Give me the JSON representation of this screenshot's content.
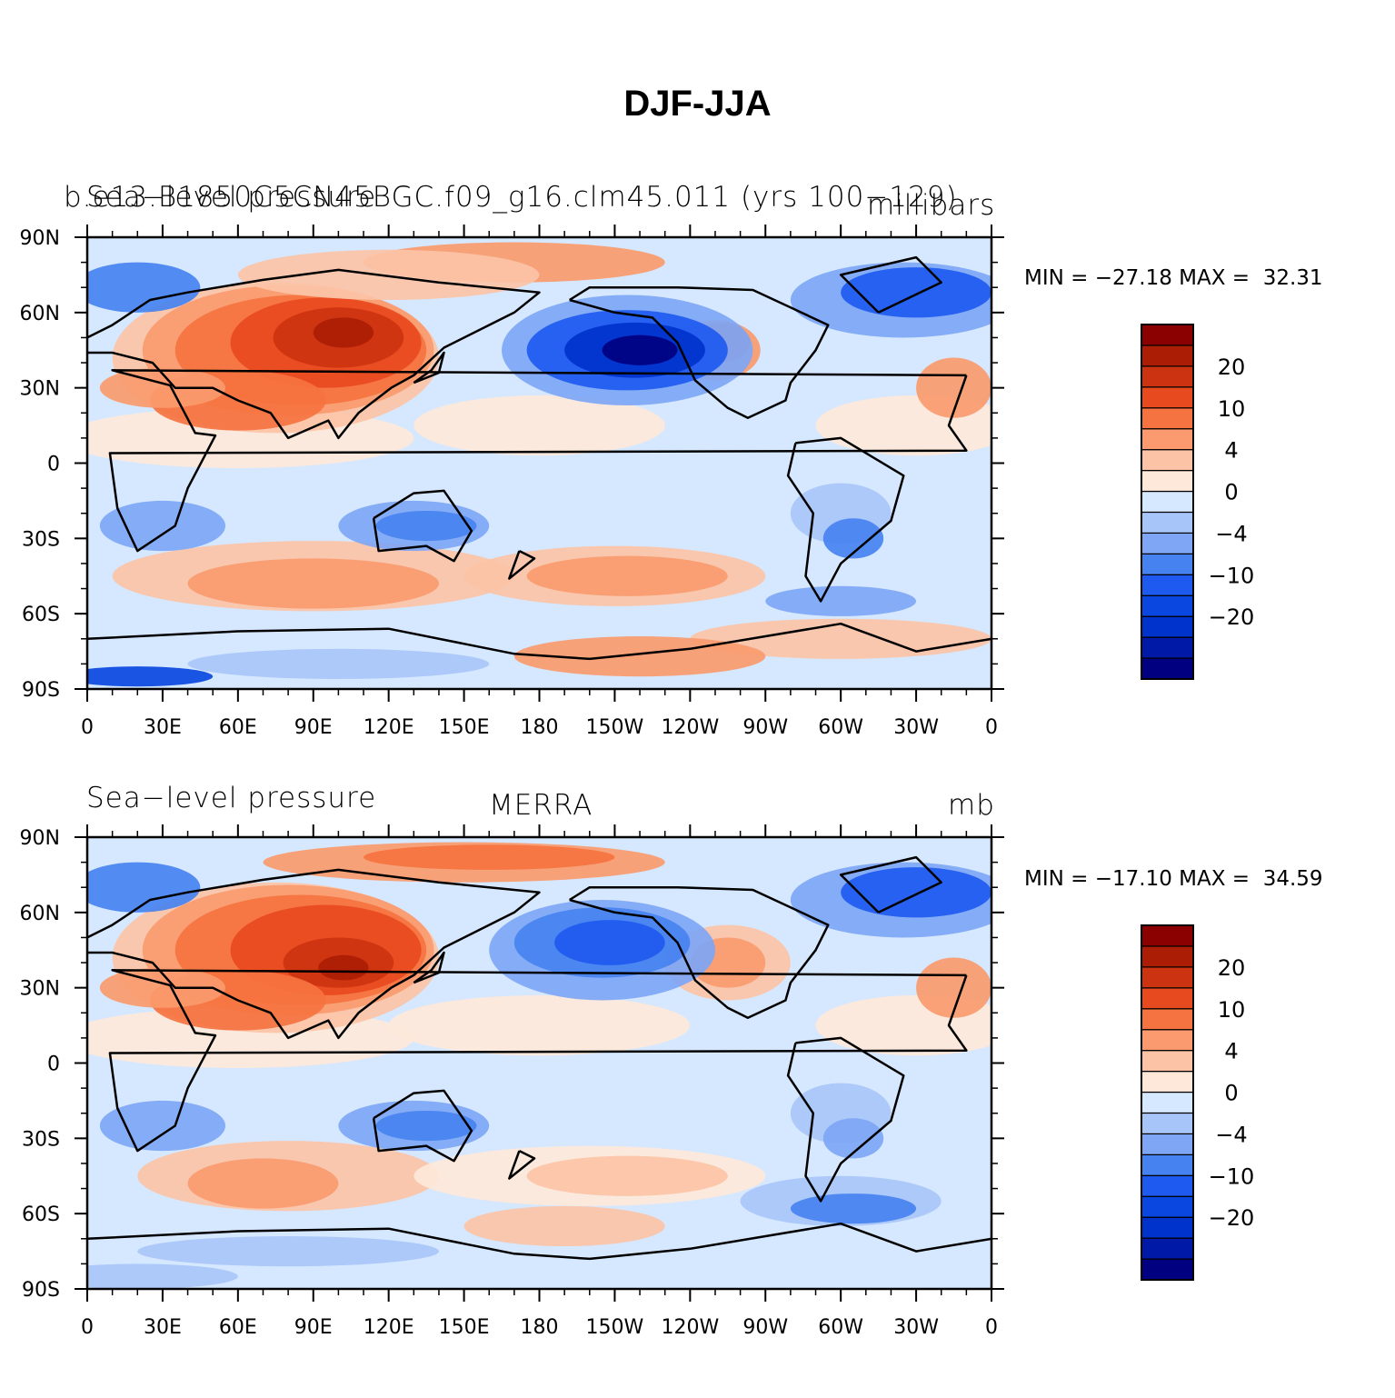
{
  "title": "DJF-JJA",
  "colorbar_colors": [
    "#000080",
    "#0019a6",
    "#0032cc",
    "#0a46e0",
    "#1e5af0",
    "#4682f0",
    "#7ea6f5",
    "#a8c5fa",
    "#d6e8ff",
    "#fde8d9",
    "#fcc3a6",
    "#fa9a6e",
    "#f57340",
    "#e84a20",
    "#cc3310",
    "#ab1d05",
    "#8b0000"
  ],
  "colorbar_labels": [
    "20",
    "10",
    "4",
    "0",
    "−4",
    "−10",
    "−20"
  ],
  "lat_labels": [
    "90N",
    "60N",
    "30N",
    "0",
    "30S",
    "60S",
    "90S"
  ],
  "lon_labels": [
    "0",
    "30E",
    "60E",
    "90E",
    "120E",
    "150E",
    "180",
    "150W",
    "120W",
    "90W",
    "60W",
    "30W",
    "0"
  ],
  "panels": [
    {
      "left_text": "Sea−level pressure",
      "center_text": "b.e13.B1850C5CN45BGC.f09_g16.clm45.011 (yrs 100−129)",
      "right_text": "millibars",
      "minmax": "MIN = −27.18 MAX =  32.31"
    },
    {
      "left_text": "Sea−level pressure",
      "center_text": "MERRA",
      "right_text": "mb",
      "minmax": "MIN = −17.10 MAX =  34.59"
    }
  ]
}
